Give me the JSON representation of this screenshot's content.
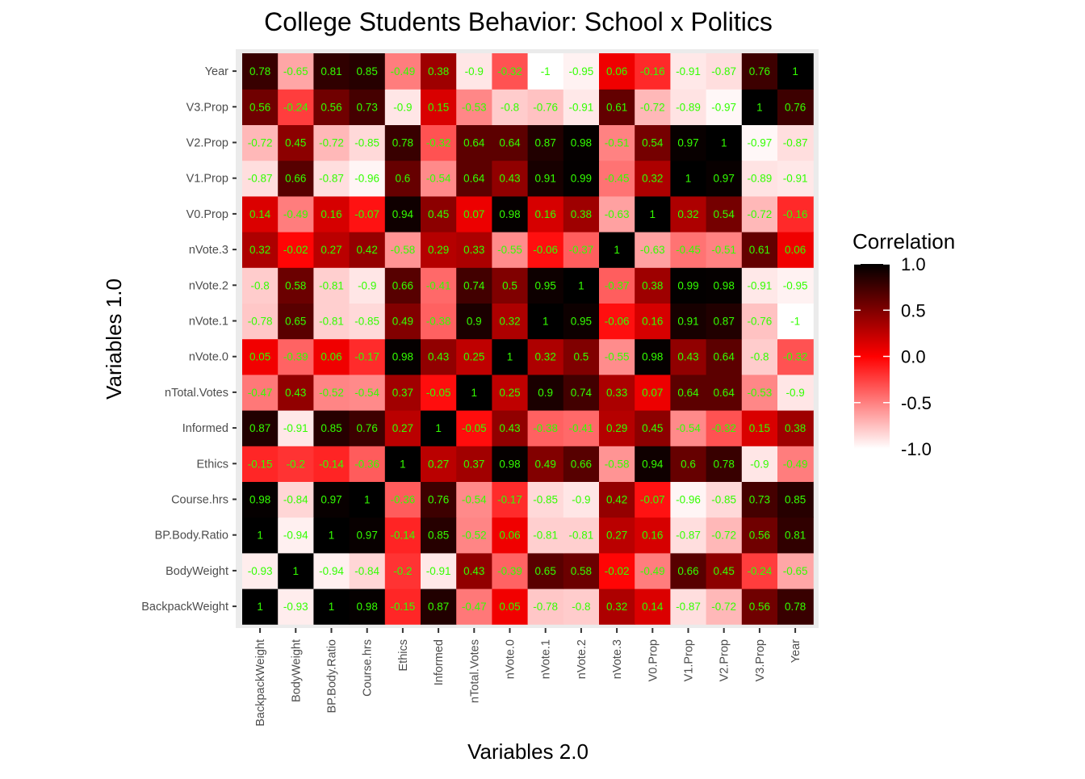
{
  "chart_data": {
    "type": "heatmap",
    "title": "College Students Behavior: School x Politics",
    "xlabel": "Variables 2.0",
    "ylabel": "Variables 1.0",
    "x_categories": [
      "BackpackWeight",
      "BodyWeight",
      "BP.Body.Ratio",
      "Course.hrs",
      "Ethics",
      "Informed",
      "nTotal.Votes",
      "nVote.0",
      "nVote.1",
      "nVote.2",
      "nVote.3",
      "V0.Prop",
      "V1.Prop",
      "V2.Prop",
      "V3.Prop",
      "Year"
    ],
    "y_categories": [
      "BackpackWeight",
      "BodyWeight",
      "BP.Body.Ratio",
      "Course.hrs",
      "Ethics",
      "Informed",
      "nTotal.Votes",
      "nVote.0",
      "nVote.1",
      "nVote.2",
      "nVote.3",
      "V0.Prop",
      "V1.Prop",
      "V2.Prop",
      "V3.Prop",
      "Year"
    ],
    "values": [
      [
        1,
        -0.93,
        1,
        0.98,
        -0.15,
        0.87,
        -0.47,
        0.05,
        -0.78,
        -0.8,
        0.32,
        0.14,
        -0.87,
        -0.72,
        0.56,
        0.78
      ],
      [
        -0.93,
        1,
        -0.94,
        -0.84,
        -0.2,
        -0.91,
        0.43,
        -0.39,
        0.65,
        0.58,
        -0.02,
        -0.49,
        0.66,
        0.45,
        -0.24,
        -0.65
      ],
      [
        1,
        -0.94,
        1,
        0.97,
        -0.14,
        0.85,
        -0.52,
        0.06,
        -0.81,
        -0.81,
        0.27,
        0.16,
        -0.87,
        -0.72,
        0.56,
        0.81
      ],
      [
        0.98,
        -0.84,
        0.97,
        1,
        -0.36,
        0.76,
        -0.54,
        -0.17,
        -0.85,
        -0.9,
        0.42,
        -0.07,
        -0.96,
        -0.85,
        0.73,
        0.85
      ],
      [
        -0.15,
        -0.2,
        -0.14,
        -0.36,
        1,
        0.27,
        0.37,
        0.98,
        0.49,
        0.66,
        -0.58,
        0.94,
        0.6,
        0.78,
        -0.9,
        -0.49
      ],
      [
        0.87,
        -0.91,
        0.85,
        0.76,
        0.27,
        1,
        -0.05,
        0.43,
        -0.38,
        -0.41,
        0.29,
        0.45,
        -0.54,
        -0.32,
        0.15,
        0.38
      ],
      [
        -0.47,
        0.43,
        -0.52,
        -0.54,
        0.37,
        -0.05,
        1,
        0.25,
        0.9,
        0.74,
        0.33,
        0.07,
        0.64,
        0.64,
        -0.53,
        -0.9
      ],
      [
        0.05,
        -0.39,
        0.06,
        -0.17,
        0.98,
        0.43,
        0.25,
        1,
        0.32,
        0.5,
        -0.55,
        0.98,
        0.43,
        0.64,
        -0.8,
        -0.32
      ],
      [
        -0.78,
        0.65,
        -0.81,
        -0.85,
        0.49,
        -0.38,
        0.9,
        0.32,
        1,
        0.95,
        -0.06,
        0.16,
        0.91,
        0.87,
        -0.76,
        -1
      ],
      [
        -0.8,
        0.58,
        -0.81,
        -0.9,
        0.66,
        -0.41,
        0.74,
        0.5,
        0.95,
        1,
        -0.37,
        0.38,
        0.99,
        0.98,
        -0.91,
        -0.95
      ],
      [
        0.32,
        -0.02,
        0.27,
        0.42,
        -0.58,
        0.29,
        0.33,
        -0.55,
        -0.06,
        -0.37,
        1,
        -0.63,
        -0.45,
        -0.51,
        0.61,
        0.06
      ],
      [
        0.14,
        -0.49,
        0.16,
        -0.07,
        0.94,
        0.45,
        0.07,
        0.98,
        0.16,
        0.38,
        -0.63,
        1,
        0.32,
        0.54,
        -0.72,
        -0.16
      ],
      [
        -0.87,
        0.66,
        -0.87,
        -0.96,
        0.6,
        -0.54,
        0.64,
        0.43,
        0.91,
        0.99,
        -0.45,
        0.32,
        1,
        0.97,
        -0.89,
        -0.91
      ],
      [
        -0.72,
        0.45,
        -0.72,
        -0.85,
        0.78,
        -0.32,
        0.64,
        0.64,
        0.87,
        0.98,
        -0.51,
        0.54,
        0.97,
        1,
        -0.97,
        -0.87
      ],
      [
        0.56,
        -0.24,
        0.56,
        0.73,
        -0.9,
        0.15,
        -0.53,
        -0.8,
        -0.76,
        -0.91,
        0.61,
        -0.72,
        -0.89,
        -0.97,
        1,
        0.76
      ],
      [
        0.78,
        -0.65,
        0.81,
        0.85,
        -0.49,
        0.38,
        -0.9,
        -0.32,
        -1,
        -0.95,
        0.06,
        -0.16,
        -0.91,
        -0.87,
        0.76,
        1
      ]
    ],
    "legend": {
      "title": "Correlation",
      "position": "right",
      "ticks": [
        "1.0",
        "0.5",
        "0.0",
        "-0.5",
        "-1.0"
      ],
      "tick_values": [
        1,
        0.5,
        0,
        -0.5,
        -1
      ]
    },
    "colors": {
      "high": "#000000",
      "mid": "#ff0000",
      "low": "#ffffff",
      "cell_label": "#33ff00",
      "panel_background": "#ebebeb"
    },
    "value_range": [
      -1,
      1
    ],
    "grid": true
  }
}
